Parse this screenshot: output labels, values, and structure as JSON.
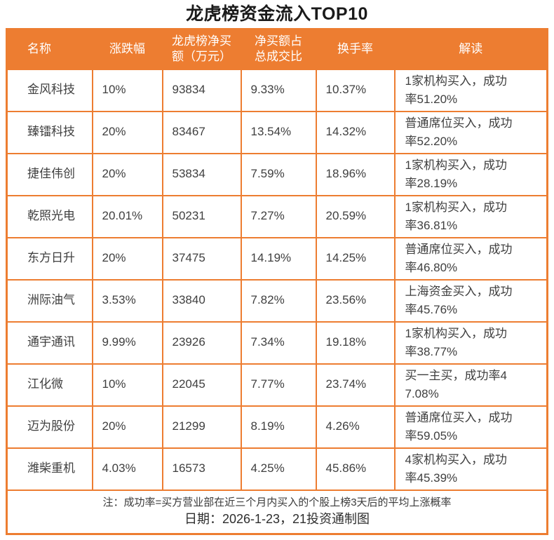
{
  "title": "龙虎榜资金流入TOP10",
  "colors": {
    "accent_orange": "#ED7D31",
    "header_text": "#FFFFFF",
    "body_text": "#3F3F3F",
    "background": "#FFFFFF"
  },
  "chart_data": {
    "type": "table",
    "title": "龙虎榜资金流入TOP10",
    "headers": [
      "名称",
      "涨跌幅",
      "龙虎榜净买额（万元）",
      "净买额占总成交比",
      "换手率",
      "解读"
    ],
    "rows": [
      {
        "name": "金风科技",
        "change": "10%",
        "net_buy": "93834",
        "ratio": "9.33%",
        "turnover": "10.37%",
        "interpretation": "1家机构买入，成功率51.20%"
      },
      {
        "name": "臻镭科技",
        "change": "20%",
        "net_buy": "83467",
        "ratio": "13.54%",
        "turnover": "14.32%",
        "interpretation": "普通席位买入，成功率52.20%"
      },
      {
        "name": "捷佳伟创",
        "change": "20%",
        "net_buy": "53834",
        "ratio": "7.59%",
        "turnover": "18.96%",
        "interpretation": "1家机构买入，成功率28.19%"
      },
      {
        "name": "乾照光电",
        "change": "20.01%",
        "net_buy": "50231",
        "ratio": "7.27%",
        "turnover": "20.59%",
        "interpretation": "1家机构买入，成功率36.81%"
      },
      {
        "name": "东方日升",
        "change": "20%",
        "net_buy": "37475",
        "ratio": "14.19%",
        "turnover": "14.25%",
        "interpretation": "普通席位买入，成功率46.80%"
      },
      {
        "name": "洲际油气",
        "change": "3.53%",
        "net_buy": "33840",
        "ratio": "7.82%",
        "turnover": "23.56%",
        "interpretation": "上海资金买入，成功率45.76%"
      },
      {
        "name": "通宇通讯",
        "change": "9.99%",
        "net_buy": "23926",
        "ratio": "7.34%",
        "turnover": "19.18%",
        "interpretation": "1家机构买入，成功率38.77%"
      },
      {
        "name": "江化微",
        "change": "10%",
        "net_buy": "22045",
        "ratio": "7.77%",
        "turnover": "23.74%",
        "interpretation": "买一主买，成功率47.08%"
      },
      {
        "name": "迈为股份",
        "change": "20%",
        "net_buy": "21299",
        "ratio": "8.19%",
        "turnover": "4.26%",
        "interpretation": "普通席位买入，成功率59.05%"
      },
      {
        "name": "潍柴重机",
        "change": "4.03%",
        "net_buy": "16573",
        "ratio": "4.25%",
        "turnover": "45.86%",
        "interpretation": "4家机构买入，成功率45.39%"
      }
    ]
  },
  "footer": {
    "note": "注：成功率=买方营业部在近三个月内买入的个股上榜3天后的平均上涨概率",
    "date_line": "日期：2026-1-23，21投资通制图"
  }
}
